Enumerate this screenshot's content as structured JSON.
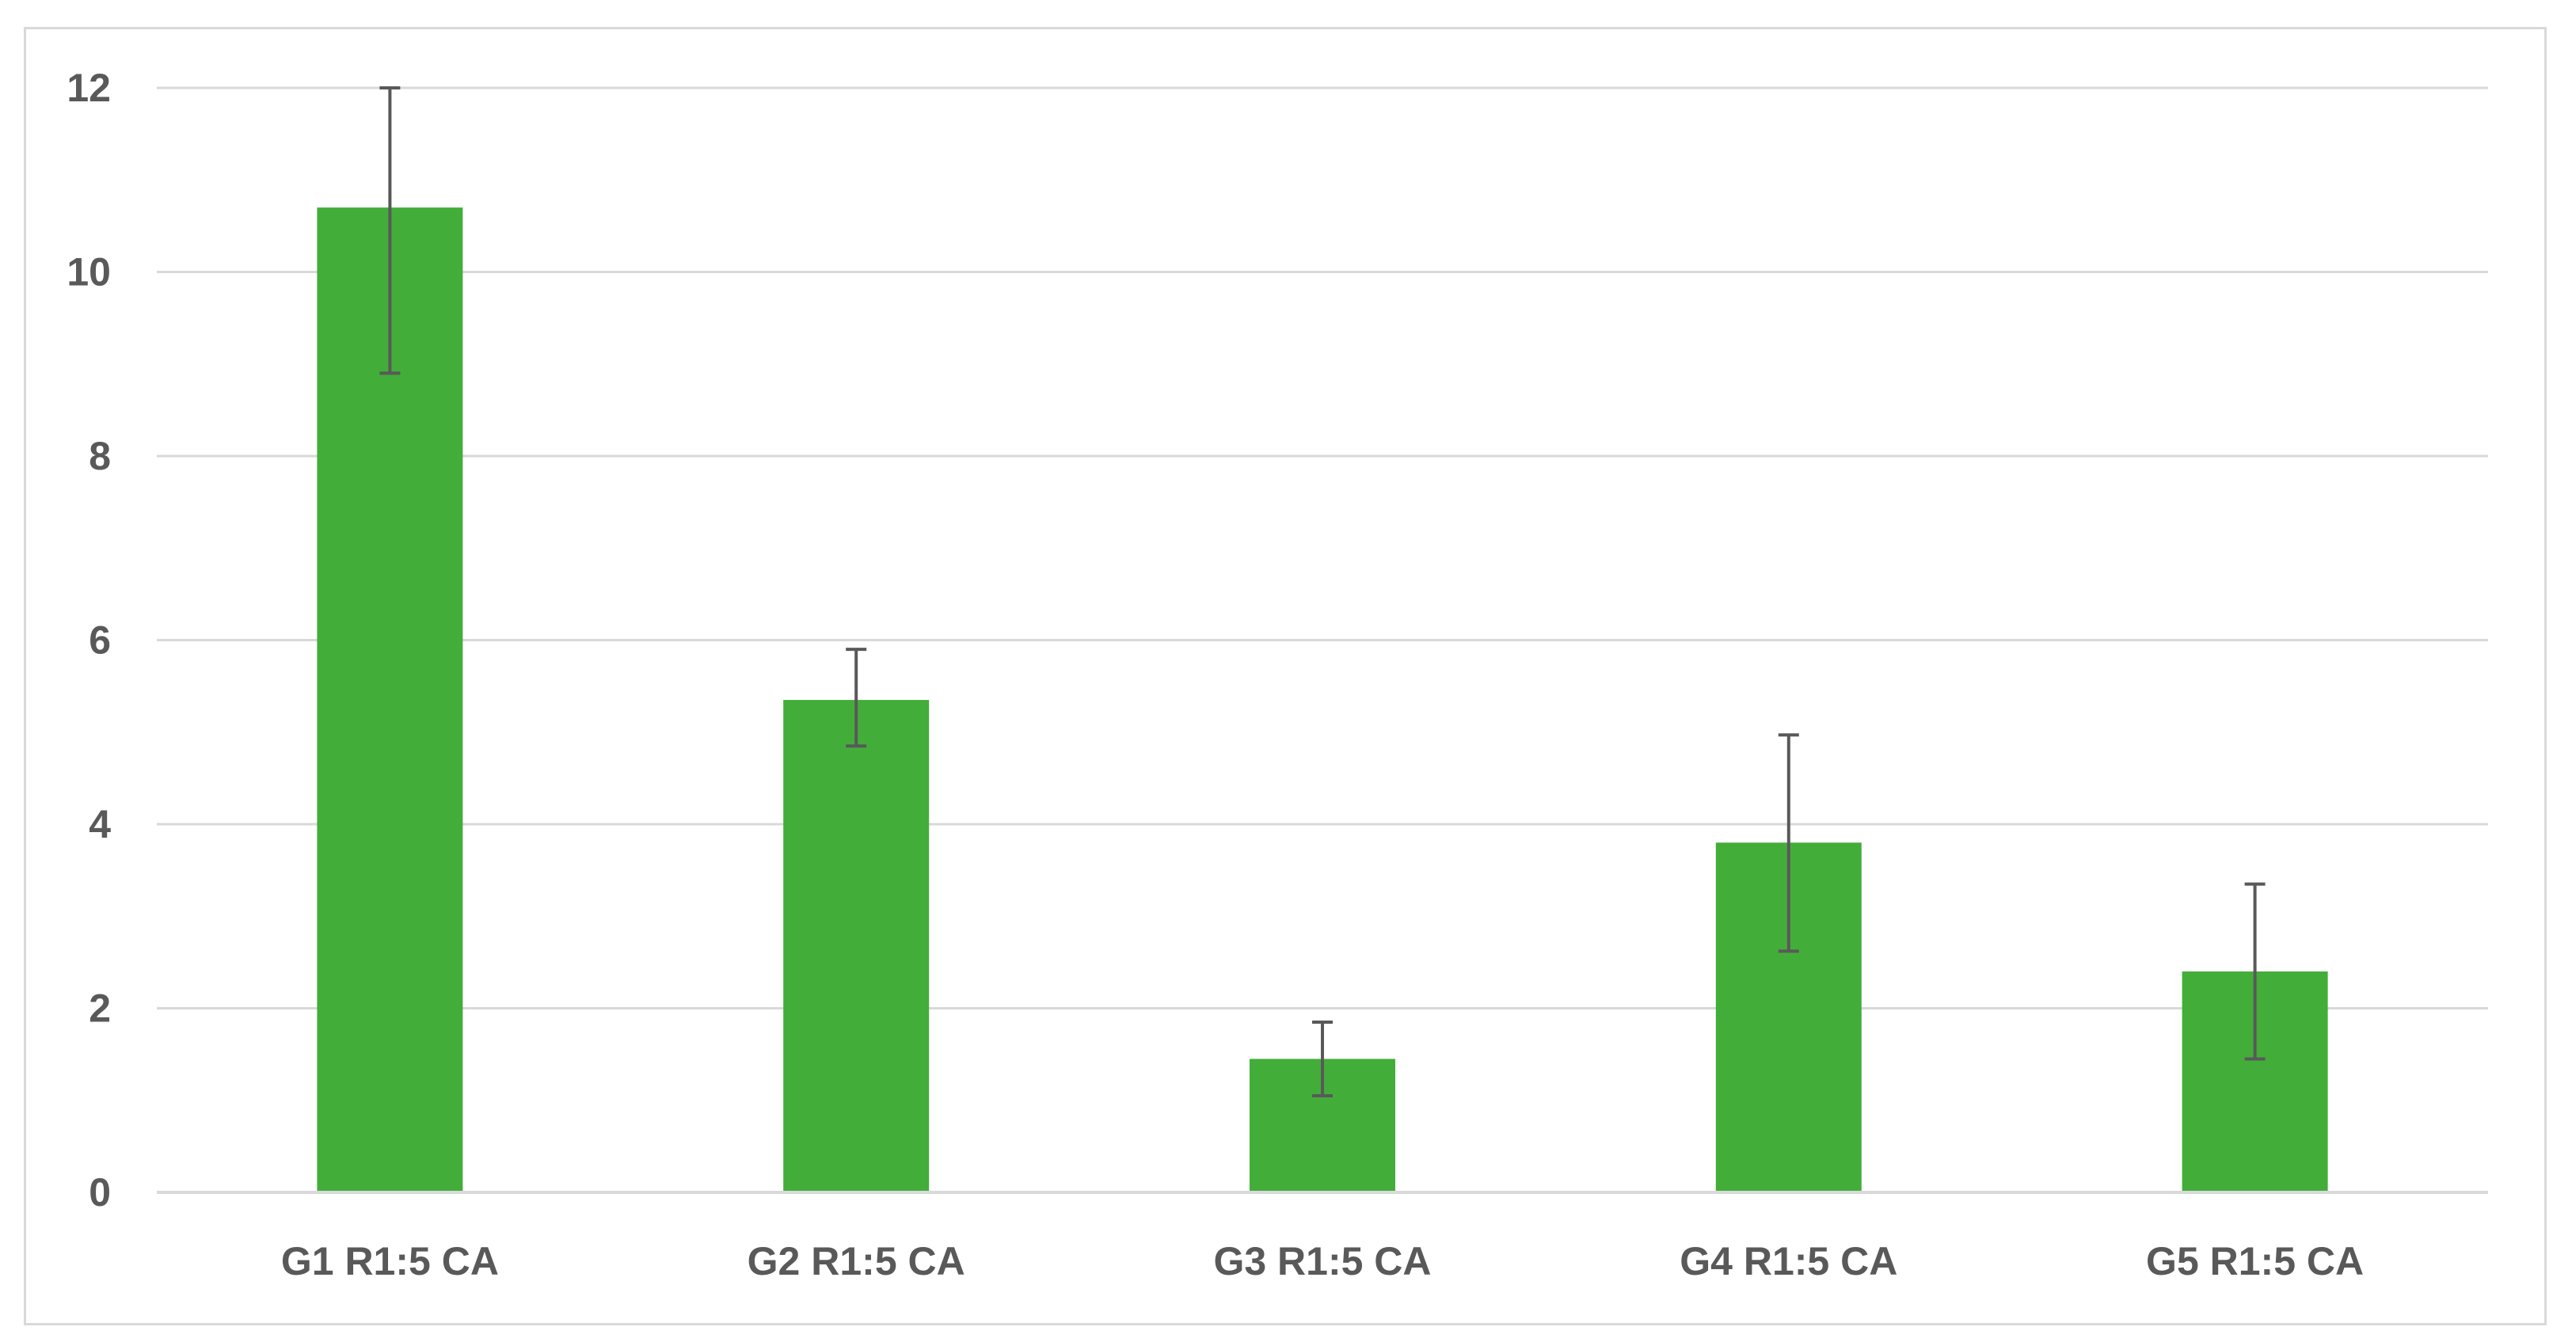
{
  "chart_data": {
    "type": "bar",
    "categories": [
      "G1 R1:5 CA",
      "G2 R1:5 CA",
      "G3 R1:5 CA",
      "G4 R1:5 CA",
      "G5 R1:5 CA"
    ],
    "values": [
      10.7,
      5.35,
      1.45,
      3.8,
      2.4
    ],
    "error_upper": [
      12.0,
      5.9,
      1.85,
      4.97,
      3.35
    ],
    "error_lower": [
      8.9,
      4.85,
      1.05,
      2.62,
      1.45
    ],
    "y_ticks": [
      "0",
      "2",
      "4",
      "6",
      "8",
      "10",
      "12"
    ],
    "ylim": [
      0,
      12
    ],
    "title": "",
    "xlabel": "",
    "ylabel": "",
    "grid": true,
    "legend": "none",
    "colors": {
      "bar": "#43ad3a",
      "error_bar": "#595959",
      "grid": "#d9d9d9",
      "axis_text": "#595959"
    }
  }
}
